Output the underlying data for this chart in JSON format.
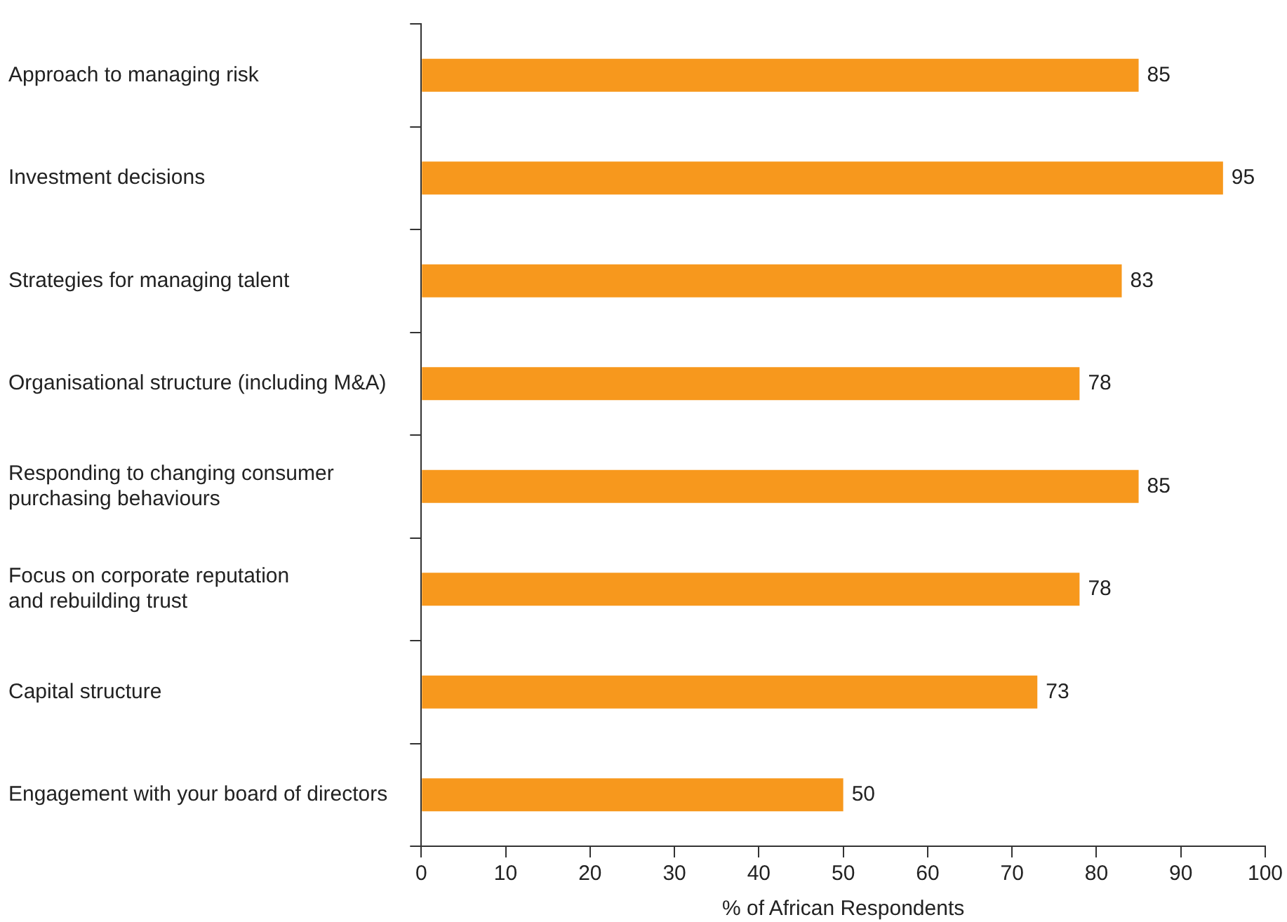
{
  "chart_data": {
    "type": "bar",
    "orientation": "horizontal",
    "categories": [
      "Approach to managing risk",
      "Investment decisions",
      "Strategies for managing talent",
      "Organisational structure (including M&A)",
      "Responding to changing consumer\npurchasing behaviours",
      "Focus on corporate reputation\nand rebuilding trust",
      "Capital structure",
      "Engagement with your board of directors"
    ],
    "values": [
      85,
      95,
      83,
      78,
      85,
      78,
      73,
      50
    ],
    "color": "#f7981d",
    "xlabel": "% of African Respondents",
    "xlim": [
      0,
      100
    ],
    "xticks": [
      0,
      10,
      20,
      30,
      40,
      50,
      60,
      70,
      80,
      90,
      100
    ],
    "data_labels": true,
    "grid": false,
    "legend": false
  }
}
